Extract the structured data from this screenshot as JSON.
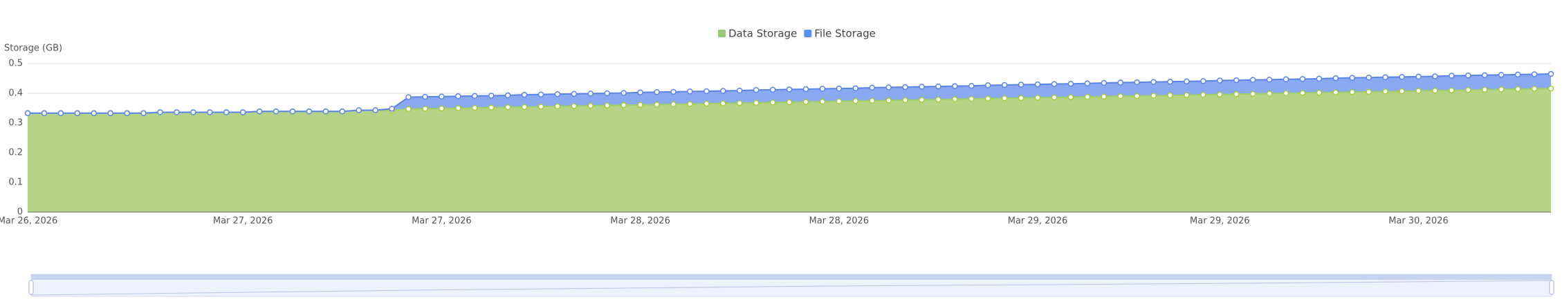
{
  "chart_data": {
    "type": "stacked-area",
    "y_label": "Storage (GB)",
    "categories": [
      "Mar 26, 2026",
      null,
      null,
      null,
      null,
      null,
      null,
      null,
      null,
      null,
      null,
      null,
      null,
      "Mar 27, 2026",
      null,
      null,
      null,
      null,
      null,
      null,
      null,
      null,
      null,
      null,
      null,
      "Mar 27, 2026",
      null,
      null,
      null,
      null,
      null,
      null,
      null,
      null,
      null,
      null,
      null,
      "Mar 28, 2026",
      null,
      null,
      null,
      null,
      null,
      null,
      null,
      null,
      null,
      null,
      null,
      "Mar 28, 2026",
      null,
      null,
      null,
      null,
      null,
      null,
      null,
      null,
      null,
      null,
      null,
      "Mar 29, 2026",
      null,
      null,
      null,
      null,
      null,
      null,
      null,
      null,
      null,
      null,
      "Mar 29, 2026",
      null,
      null,
      null,
      null,
      null,
      null,
      null,
      null,
      null,
      null,
      null,
      "Mar 30, 2026",
      null,
      null,
      null,
      null,
      null,
      null,
      null,
      null
    ],
    "series": [
      {
        "name": "Data Storage",
        "color": "#91cc75",
        "values": [
          0.333,
          0.333,
          0.333,
          0.333,
          0.333,
          0.333,
          0.333,
          0.333,
          0.336,
          0.336,
          0.336,
          0.336,
          0.336,
          0.336,
          0.339,
          0.339,
          0.339,
          0.339,
          0.339,
          0.339,
          0.343,
          0.343,
          0.343,
          0.347,
          0.348,
          0.349,
          0.35,
          0.351,
          0.352,
          0.353,
          0.354,
          0.355,
          0.356,
          0.357,
          0.358,
          0.359,
          0.36,
          0.361,
          0.362,
          0.363,
          0.364,
          0.365,
          0.366,
          0.367,
          0.368,
          0.369,
          0.37,
          0.371,
          0.372,
          0.373,
          0.374,
          0.375,
          0.376,
          0.377,
          0.378,
          0.379,
          0.38,
          0.381,
          0.382,
          0.383,
          0.384,
          0.385,
          0.386,
          0.387,
          0.388,
          0.389,
          0.39,
          0.391,
          0.392,
          0.393,
          0.394,
          0.395,
          0.396,
          0.397,
          0.398,
          0.399,
          0.4,
          0.401,
          0.402,
          0.403,
          0.404,
          0.405,
          0.406,
          0.407,
          0.408,
          0.409,
          0.41,
          0.411,
          0.412,
          0.413,
          0.414,
          0.415,
          0.416
        ]
      },
      {
        "name": "File Storage",
        "color": "#5b8ff9",
        "values": [
          0,
          0,
          0,
          0,
          0,
          0,
          0,
          0,
          0,
          0,
          0,
          0,
          0,
          0,
          0,
          0,
          0,
          0,
          0,
          0,
          0,
          0,
          0.005,
          0.04,
          0.04,
          0.04,
          0.04,
          0.04,
          0.04,
          0.04,
          0.041,
          0.041,
          0.041,
          0.041,
          0.041,
          0.041,
          0.041,
          0.042,
          0.042,
          0.042,
          0.042,
          0.042,
          0.042,
          0.042,
          0.043,
          0.043,
          0.043,
          0.043,
          0.043,
          0.043,
          0.043,
          0.044,
          0.044,
          0.044,
          0.044,
          0.044,
          0.044,
          0.044,
          0.045,
          0.045,
          0.045,
          0.045,
          0.045,
          0.045,
          0.045,
          0.046,
          0.046,
          0.046,
          0.046,
          0.046,
          0.046,
          0.046,
          0.047,
          0.047,
          0.047,
          0.047,
          0.047,
          0.047,
          0.047,
          0.048,
          0.048,
          0.048,
          0.048,
          0.048,
          0.048,
          0.048,
          0.049,
          0.049,
          0.049,
          0.049,
          0.049,
          0.049,
          0.049
        ]
      }
    ],
    "ylim": [
      0,
      0.5
    ],
    "yticks": [
      0,
      0.1,
      0.2,
      0.3,
      0.4,
      0.5
    ],
    "grid": true,
    "legend": "top"
  }
}
